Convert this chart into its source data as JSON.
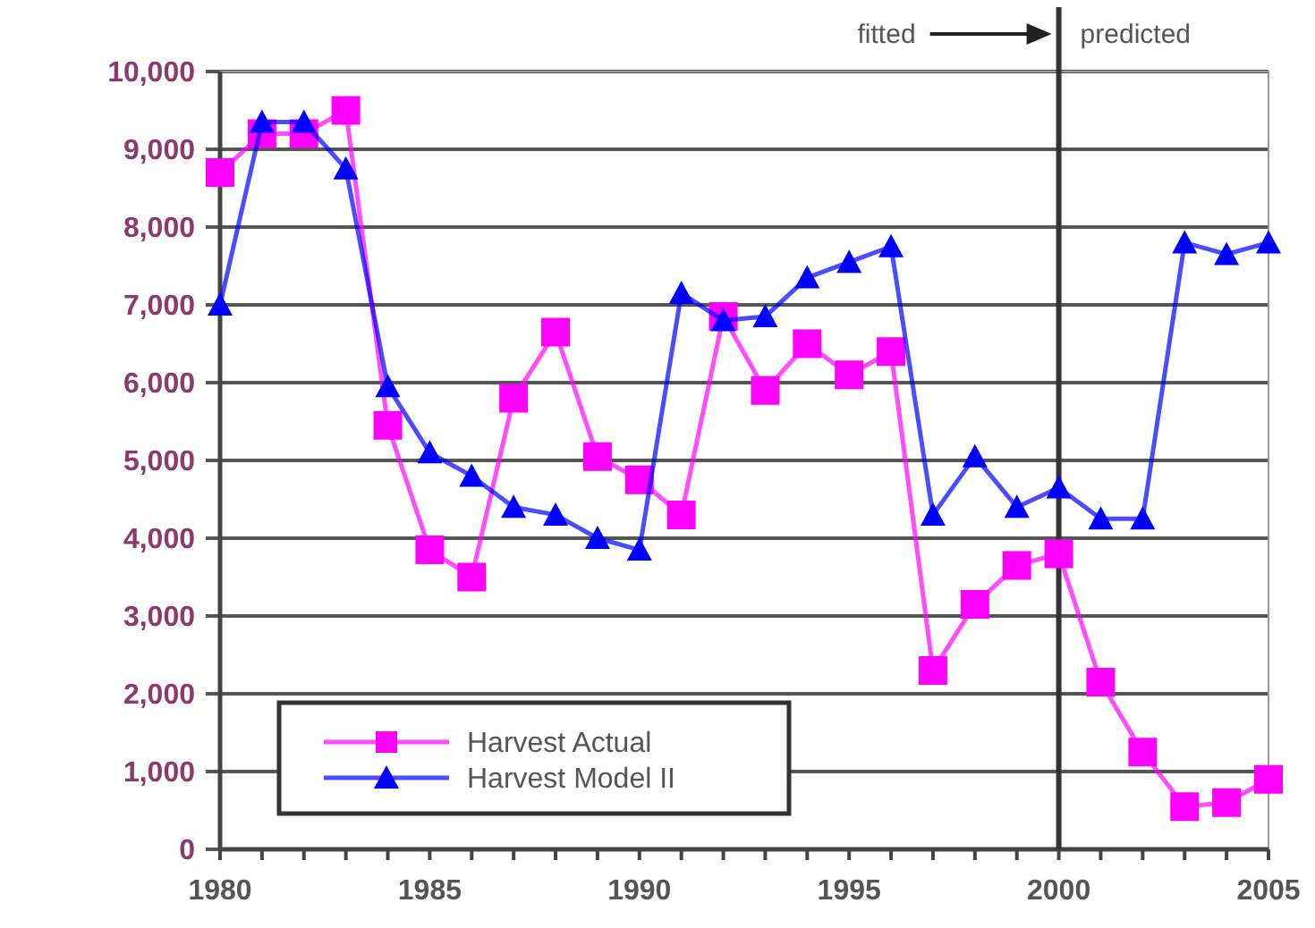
{
  "chart_data": {
    "type": "line",
    "x": [
      1980,
      1981,
      1982,
      1983,
      1984,
      1985,
      1986,
      1987,
      1988,
      1989,
      1990,
      1991,
      1992,
      1993,
      1994,
      1995,
      1996,
      1997,
      1998,
      1999,
      2000,
      2001,
      2002,
      2003,
      2004,
      2005
    ],
    "series": [
      {
        "name": "Harvest Actual",
        "color": "#ff00ff",
        "marker": "square",
        "values": [
          8700,
          9200,
          9200,
          9500,
          5450,
          3850,
          3500,
          5800,
          6650,
          5050,
          4750,
          4300,
          6850,
          5900,
          6500,
          6100,
          6400,
          2300,
          3150,
          3650,
          3800,
          2150,
          1250,
          550,
          600,
          900
        ]
      },
      {
        "name": "Harvest Model II",
        "color": "#0000ff",
        "marker": "triangle",
        "values": [
          7000,
          9350,
          9350,
          8750,
          5950,
          5100,
          4800,
          4400,
          4300,
          4000,
          3850,
          7150,
          6800,
          6850,
          7350,
          7550,
          7750,
          4300,
          5050,
          4400,
          4650,
          4250,
          4250,
          7800,
          7650,
          7800
        ]
      }
    ],
    "xlim": [
      1980,
      2005
    ],
    "ylim": [
      0,
      10000
    ],
    "xticks": [
      1980,
      {
        "value": 1981,
        "label": null
      },
      {
        "value": 1982,
        "label": null
      },
      {
        "value": 1983,
        "label": null
      },
      {
        "value": 1984,
        "label": null
      },
      1985,
      {
        "value": 1986,
        "label": null
      },
      {
        "value": 1987,
        "label": null
      },
      {
        "value": 1988,
        "label": null
      },
      {
        "value": 1989,
        "label": null
      },
      1990,
      {
        "value": 1991,
        "label": null
      },
      {
        "value": 1992,
        "label": null
      },
      {
        "value": 1993,
        "label": null
      },
      {
        "value": 1994,
        "label": null
      },
      1995,
      {
        "value": 1996,
        "label": null
      },
      {
        "value": 1997,
        "label": null
      },
      {
        "value": 1998,
        "label": null
      },
      {
        "value": 1999,
        "label": null
      },
      2000,
      {
        "value": 2001,
        "label": null
      },
      {
        "value": 2002,
        "label": null
      },
      {
        "value": 2003,
        "label": null
      },
      {
        "value": 2004,
        "label": null
      },
      2005
    ],
    "yticks": [
      0,
      {
        "value": 1000,
        "label": "1,000"
      },
      {
        "value": 2000,
        "label": "2,000"
      },
      {
        "value": 3000,
        "label": "3,000"
      },
      {
        "value": 4000,
        "label": "4,000"
      },
      {
        "value": 5000,
        "label": "5,000"
      },
      {
        "value": 6000,
        "label": "6,000"
      },
      {
        "value": 7000,
        "label": "7,000"
      },
      {
        "value": 8000,
        "label": "8,000"
      },
      {
        "value": 9000,
        "label": "9,000"
      },
      {
        "value": 10000,
        "label": "10,000"
      }
    ],
    "grid": "y",
    "legend": "bottom left",
    "line_style": "solid",
    "ref_lines": [
      {
        "axis": "x",
        "value": 2000,
        "color": "#333333"
      }
    ],
    "annotations": [
      "fitted",
      "predicted"
    ]
  }
}
